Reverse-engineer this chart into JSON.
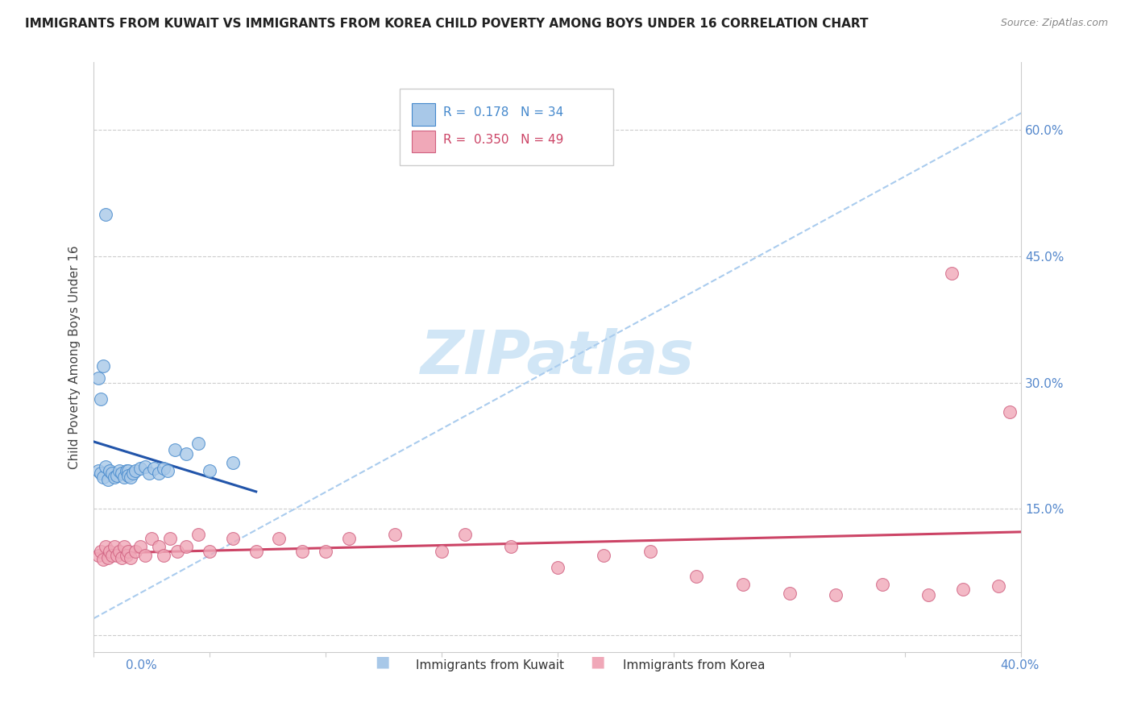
{
  "title": "IMMIGRANTS FROM KUWAIT VS IMMIGRANTS FROM KOREA CHILD POVERTY AMONG BOYS UNDER 16 CORRELATION CHART",
  "source": "Source: ZipAtlas.com",
  "ylabel": "Child Poverty Among Boys Under 16",
  "xlim": [
    0.0,
    0.4
  ],
  "ylim": [
    -0.02,
    0.68
  ],
  "ytick_vals": [
    0.0,
    0.15,
    0.3,
    0.45,
    0.6
  ],
  "ytick_labels": [
    "",
    "15.0%",
    "30.0%",
    "45.0%",
    "60.0%"
  ],
  "legend_kuwait_r": "0.178",
  "legend_kuwait_n": "34",
  "legend_korea_r": "0.350",
  "legend_korea_n": "49",
  "kuwait_fill": "#a8c8e8",
  "kuwait_edge": "#4488cc",
  "korea_fill": "#f0a8b8",
  "korea_edge": "#d06080",
  "kuwait_line_color": "#2255aa",
  "korea_line_color": "#cc4466",
  "dash_line_color": "#aaccee",
  "watermark_color": "#cce4f5",
  "kuwait_x": [
    0.002,
    0.003,
    0.004,
    0.005,
    0.006,
    0.007,
    0.008,
    0.009,
    0.01,
    0.011,
    0.012,
    0.013,
    0.014,
    0.015,
    0.015,
    0.016,
    0.017,
    0.018,
    0.02,
    0.022,
    0.024,
    0.026,
    0.028,
    0.03,
    0.032,
    0.035,
    0.04,
    0.045,
    0.05,
    0.06,
    0.002,
    0.003,
    0.005,
    0.004
  ],
  "kuwait_y": [
    0.195,
    0.192,
    0.188,
    0.2,
    0.185,
    0.195,
    0.192,
    0.188,
    0.19,
    0.195,
    0.192,
    0.188,
    0.195,
    0.195,
    0.19,
    0.188,
    0.192,
    0.195,
    0.198,
    0.2,
    0.192,
    0.198,
    0.192,
    0.198,
    0.195,
    0.22,
    0.215,
    0.228,
    0.195,
    0.205,
    0.305,
    0.28,
    0.5,
    0.32
  ],
  "korea_x": [
    0.002,
    0.003,
    0.004,
    0.005,
    0.006,
    0.007,
    0.008,
    0.009,
    0.01,
    0.011,
    0.012,
    0.013,
    0.014,
    0.015,
    0.016,
    0.018,
    0.02,
    0.022,
    0.025,
    0.028,
    0.03,
    0.033,
    0.036,
    0.04,
    0.045,
    0.05,
    0.06,
    0.07,
    0.08,
    0.09,
    0.1,
    0.11,
    0.13,
    0.15,
    0.16,
    0.18,
    0.2,
    0.22,
    0.24,
    0.26,
    0.28,
    0.3,
    0.32,
    0.34,
    0.36,
    0.375,
    0.39,
    0.395,
    0.37
  ],
  "korea_y": [
    0.095,
    0.1,
    0.09,
    0.105,
    0.092,
    0.1,
    0.095,
    0.105,
    0.095,
    0.1,
    0.092,
    0.105,
    0.095,
    0.1,
    0.092,
    0.1,
    0.105,
    0.095,
    0.115,
    0.105,
    0.095,
    0.115,
    0.1,
    0.105,
    0.12,
    0.1,
    0.115,
    0.1,
    0.115,
    0.1,
    0.1,
    0.115,
    0.12,
    0.1,
    0.12,
    0.105,
    0.08,
    0.095,
    0.1,
    0.07,
    0.06,
    0.05,
    0.048,
    0.06,
    0.048,
    0.055,
    0.058,
    0.265,
    0.43
  ]
}
